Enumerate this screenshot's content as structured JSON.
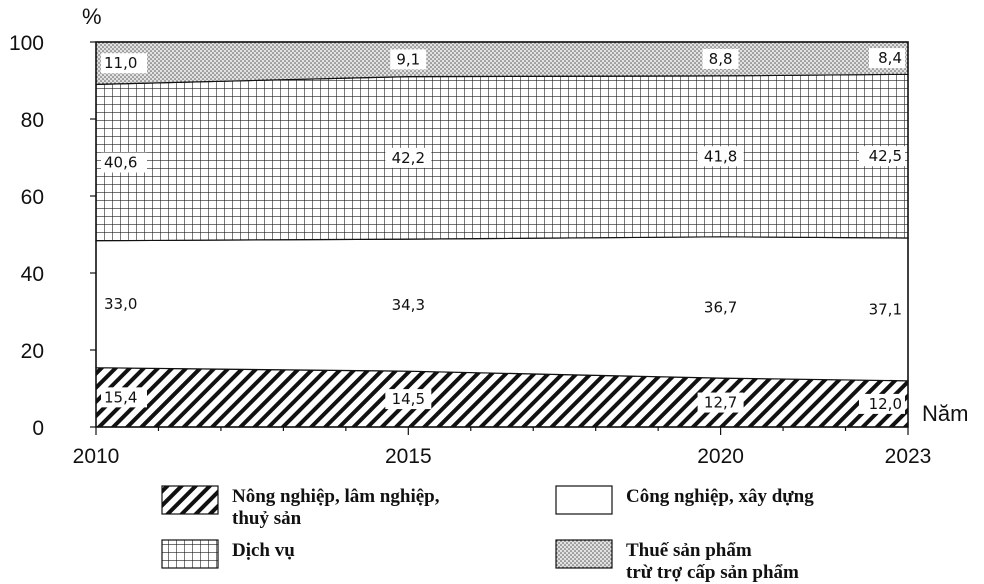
{
  "chart_data": {
    "type": "area",
    "stacked": true,
    "ylabel": "%",
    "xlabel": "Năm",
    "x": [
      "2010",
      "2015",
      "2020",
      "2023"
    ],
    "x_values": [
      2010,
      2015,
      2020,
      2023
    ],
    "ylim": [
      0,
      100
    ],
    "yticks": [
      "0",
      "20",
      "40",
      "60",
      "80",
      "100"
    ],
    "series": [
      {
        "name": "Nông nghiệp, lâm nghiệp, thuỷ sản",
        "values": [
          15.4,
          14.5,
          12.7,
          12.0
        ],
        "labels": [
          "15,4",
          "14,5",
          "12,7",
          "12,0"
        ],
        "pattern": "hatch"
      },
      {
        "name": "Công nghiệp, xây dựng",
        "values": [
          33.0,
          34.3,
          36.7,
          37.1
        ],
        "labels": [
          "33,0",
          "34,3",
          "36,7",
          "37,1"
        ],
        "pattern": "blank"
      },
      {
        "name": "Dịch vụ",
        "values": [
          40.6,
          42.2,
          41.8,
          42.5
        ],
        "labels": [
          "40,6",
          "42,2",
          "41,8",
          "42,5"
        ],
        "pattern": "grid"
      },
      {
        "name": "Thuế sản phẩm trừ trợ cấp sản phẩm",
        "values": [
          11.0,
          9.1,
          8.8,
          8.4
        ],
        "labels": [
          "11,0",
          "9,1",
          "8,8",
          "8,4"
        ],
        "pattern": "dots"
      }
    ],
    "legend": {
      "placement": "bottom",
      "items": [
        {
          "line1": "Nông nghiệp, lâm nghiệp,",
          "line2": "thuỷ sản",
          "pattern": "hatch"
        },
        {
          "line1": "Công nghiệp, xây dựng",
          "line2": "",
          "pattern": "blank"
        },
        {
          "line1": "Dịch vụ",
          "line2": "",
          "pattern": "grid"
        },
        {
          "line1": "Thuế sản phẩm",
          "line2": "trừ trợ cấp sản phẩm",
          "pattern": "dots"
        }
      ]
    }
  }
}
